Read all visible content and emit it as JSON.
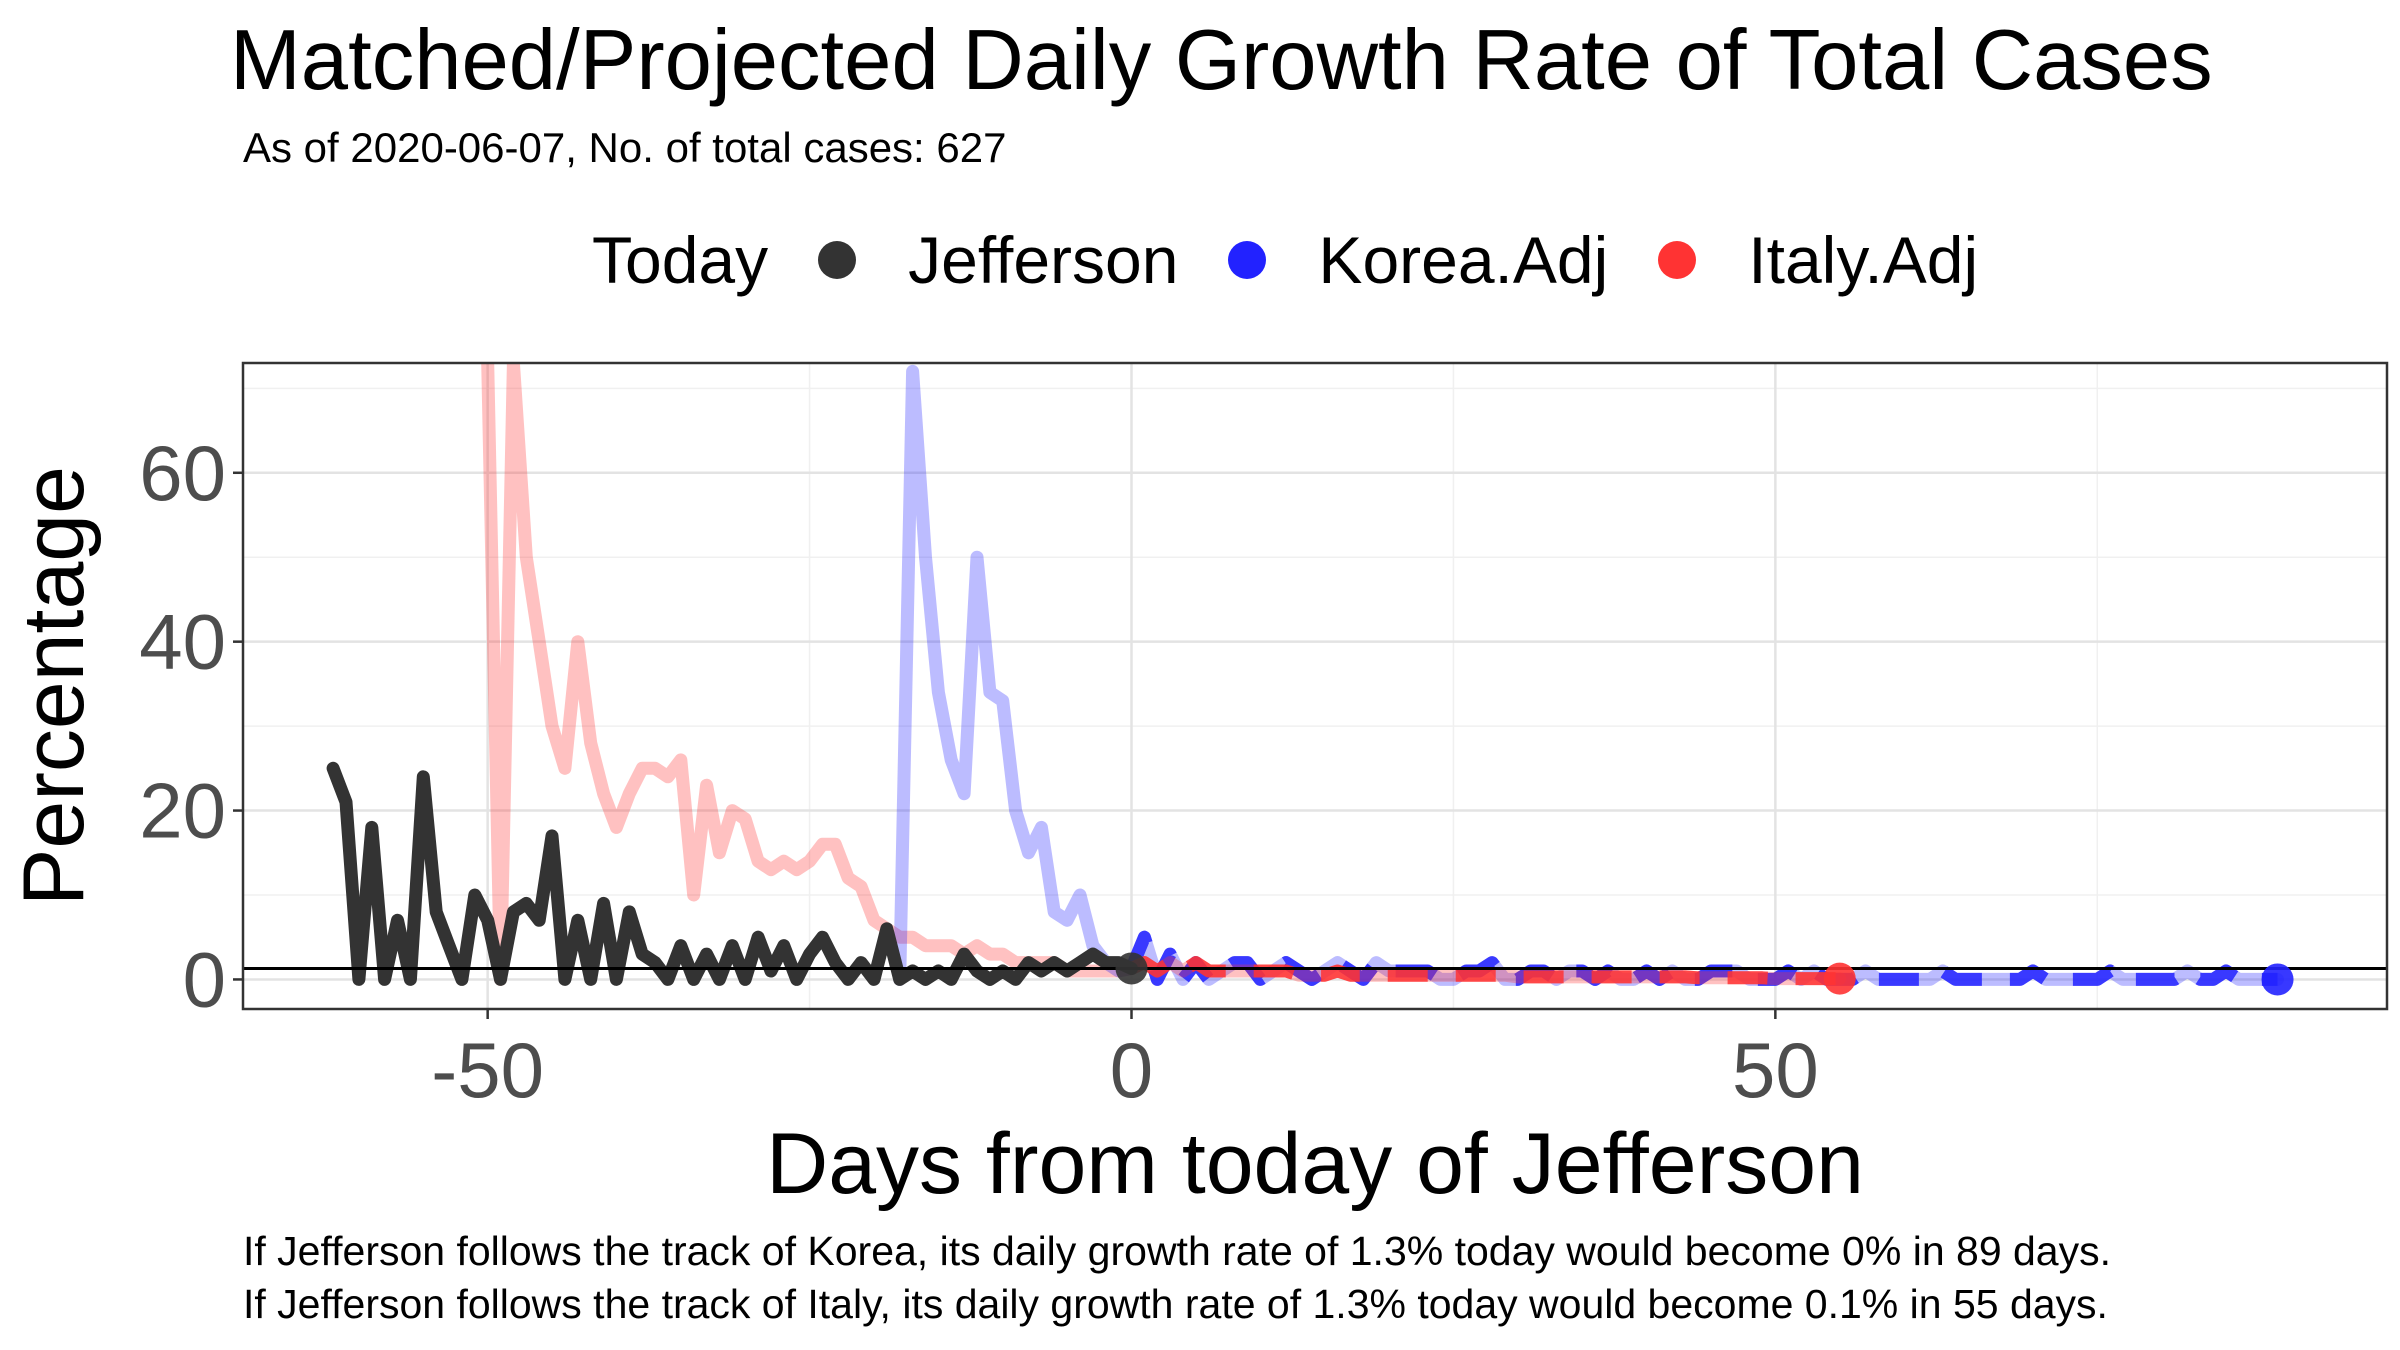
{
  "chart_data": {
    "type": "line",
    "title": "Matched/Projected Daily Growth Rate of Total Cases",
    "subtitle": "As of 2020-06-07, No. of total cases: 627",
    "xlabel": "Days from today of Jefferson",
    "ylabel": "Percentage",
    "xlim": [
      -69,
      97.5
    ],
    "ylim": [
      -3.5,
      73
    ],
    "x_ticks": [
      -50,
      0,
      50
    ],
    "y_ticks": [
      0,
      20,
      40,
      60
    ],
    "grid": true,
    "legend_title": "Today",
    "legend_position": "top",
    "reference_line_y": 1.3,
    "captions": [
      "If Jefferson follows the track of Korea, its daily growth rate of 1.3% today would become 0% in 89 days.",
      "If Jefferson follows the track of Italy, its daily growth rate of 1.3% today would become 0.1% in 55 days."
    ],
    "series": [
      {
        "name": "Jefferson",
        "color": "#333333",
        "x": [
          -62,
          -61,
          -60,
          -59,
          -58,
          -57,
          -56,
          -55,
          -54,
          -53,
          -52,
          -51,
          -50,
          -49,
          -48,
          -47,
          -46,
          -45,
          -44,
          -43,
          -42,
          -41,
          -40,
          -39,
          -38,
          -37,
          -36,
          -35,
          -34,
          -33,
          -32,
          -31,
          -30,
          -29,
          -28,
          -27,
          -26,
          -25,
          -24,
          -23,
          -22,
          -21,
          -20,
          -19,
          -18,
          -17,
          -16,
          -15,
          -14,
          -13,
          -12,
          -11,
          -10,
          -9,
          -8,
          -7,
          -6,
          -5,
          -4,
          -3,
          -2,
          -1,
          0
        ],
        "y": [
          25,
          21,
          0,
          18,
          0,
          7,
          0,
          24,
          8,
          4,
          0,
          10,
          7,
          0,
          8,
          9,
          7,
          17,
          0,
          7,
          0,
          9,
          0,
          8,
          3,
          2,
          0,
          4,
          0,
          3,
          0,
          4,
          0,
          5,
          1,
          4,
          0,
          3,
          5,
          2,
          0,
          2,
          0,
          6,
          0,
          1,
          0,
          1,
          0,
          3,
          1,
          0,
          1,
          0,
          2,
          1,
          2,
          1,
          2,
          3,
          2,
          2,
          1.3
        ]
      },
      {
        "name": "Jefferson Today",
        "color": "#333333",
        "x": [
          0
        ],
        "y": [
          1.3
        ]
      },
      {
        "name": "Korea.Adj",
        "color": "#2222ff",
        "x": [
          -18,
          -17,
          -16,
          -15,
          -14,
          -13,
          -12,
          -11,
          -10,
          -9,
          -8,
          -7,
          -6,
          -5,
          -4,
          -3,
          -2,
          -1,
          0
        ],
        "y": [
          0,
          72,
          50,
          34,
          26,
          22,
          50,
          34,
          33,
          20,
          15,
          18,
          8,
          7,
          10,
          4,
          2,
          1,
          1.3
        ]
      },
      {
        "name": "Korea.Adj projected",
        "color": "#2222ff",
        "x": [
          0,
          1,
          2,
          3,
          4,
          5,
          6,
          7,
          8,
          9,
          10,
          11,
          12,
          13,
          14,
          15,
          16,
          17,
          18,
          19,
          20,
          21,
          22,
          23,
          24,
          25,
          26,
          27,
          28,
          29,
          30,
          31,
          32,
          33,
          34,
          35,
          36,
          37,
          38,
          39,
          40,
          41,
          42,
          43,
          44,
          45,
          46,
          47,
          48,
          49,
          50,
          51,
          52,
          53,
          54,
          55,
          56,
          57,
          58,
          59,
          60,
          61,
          62,
          63,
          64,
          65,
          66,
          67,
          68,
          69,
          70,
          71,
          72,
          73,
          74,
          75,
          76,
          77,
          78,
          79,
          80,
          81,
          82,
          83,
          84,
          85,
          86,
          87,
          88,
          89
        ],
        "y": [
          1.3,
          5,
          0,
          3,
          0,
          2,
          0,
          1,
          2,
          2,
          0,
          1,
          2,
          1,
          0,
          1,
          2,
          1,
          0,
          2,
          1,
          1,
          1,
          1,
          0,
          0,
          1,
          1,
          2,
          0,
          0,
          1,
          1,
          0,
          1,
          1,
          0,
          1,
          0,
          0,
          1,
          0,
          1,
          0,
          0,
          1,
          1,
          1,
          0,
          0,
          0,
          1,
          0,
          1,
          0,
          0,
          0,
          1,
          0,
          0,
          0,
          0,
          0,
          1,
          0,
          0,
          0,
          0,
          0,
          0,
          1,
          0,
          0,
          0,
          0,
          0,
          1,
          0,
          0,
          0,
          0,
          0,
          1,
          0,
          0,
          1,
          0,
          0,
          0,
          0
        ]
      },
      {
        "name": "Italy.Adj",
        "color": "#ff3333",
        "x": [
          -50,
          -49,
          -48,
          -47,
          -46,
          -45,
          -44,
          -43,
          -42,
          -41,
          -40,
          -39,
          -38,
          -37,
          -36,
          -35,
          -34,
          -33,
          -32,
          -31,
          -30,
          -29,
          -28,
          -27,
          -26,
          -25,
          -24,
          -23,
          -22,
          -21,
          -20,
          -19,
          -18,
          -17,
          -16,
          -15,
          -14,
          -13,
          -12,
          -11,
          -10,
          -9,
          -8,
          -7,
          -6,
          -5,
          -4,
          -3,
          -2,
          -1,
          0
        ],
        "y": [
          73,
          0,
          73,
          50,
          40,
          30,
          25,
          40,
          28,
          22,
          18,
          22,
          25,
          25,
          24,
          26,
          10,
          23,
          15,
          20,
          19,
          14,
          13,
          14,
          13,
          14,
          16,
          16,
          12,
          11,
          7,
          6,
          5,
          5,
          4,
          4,
          4,
          3,
          4,
          3,
          3,
          2,
          2,
          2,
          2,
          1,
          1,
          1,
          1,
          1,
          1.3
        ]
      },
      {
        "name": "Italy.Adj projected",
        "color": "#ff3333",
        "x": [
          0,
          1,
          2,
          3,
          4,
          5,
          6,
          7,
          8,
          9,
          10,
          11,
          12,
          13,
          14,
          15,
          16,
          17,
          18,
          19,
          20,
          21,
          22,
          23,
          24,
          25,
          26,
          27,
          28,
          29,
          30,
          31,
          32,
          33,
          34,
          35,
          36,
          37,
          38,
          39,
          40,
          41,
          42,
          43,
          44,
          45,
          46,
          47,
          48,
          49,
          50,
          51,
          52,
          53,
          54,
          55
        ],
        "y": [
          1.3,
          2,
          1,
          2,
          1,
          2,
          1,
          1,
          1,
          1,
          1,
          1,
          1,
          0.5,
          0.5,
          0.5,
          1,
          0.5,
          0.5,
          0.5,
          0.5,
          0.5,
          0.5,
          0.5,
          0.5,
          0.5,
          0.5,
          0.5,
          0.5,
          0.5,
          0.3,
          0.3,
          0.3,
          0.3,
          0.3,
          0.3,
          0.3,
          0.3,
          0.3,
          0.3,
          0.3,
          0.3,
          0.3,
          0.3,
          0.2,
          0.2,
          0.2,
          0.2,
          0.2,
          0.2,
          0.1,
          0.1,
          0.1,
          0.1,
          0.1,
          0.1
        ]
      }
    ],
    "today_markers": [
      {
        "name": "Korea.Adj",
        "x": 89,
        "y": 0
      },
      {
        "name": "Italy.Adj",
        "x": 55,
        "y": 0.1
      }
    ]
  },
  "legend": {
    "title": "Today",
    "items": [
      {
        "label": "Jefferson",
        "color": "#333333"
      },
      {
        "label": "Korea.Adj",
        "color": "#2222ff"
      },
      {
        "label": "Italy.Adj",
        "color": "#ff3333"
      }
    ]
  }
}
